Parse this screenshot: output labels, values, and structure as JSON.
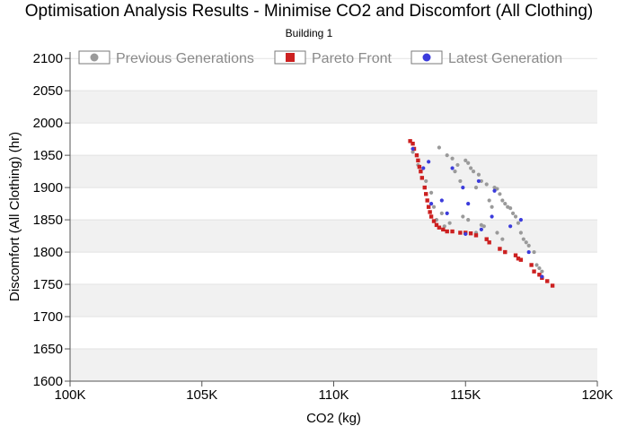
{
  "chart_data": {
    "type": "scatter",
    "title": "Optimisation Analysis Results - Minimise CO2 and Discomfort (All Clothing)",
    "subtitle": "Building 1",
    "xlabel": "CO2 (kg)",
    "ylabel": "Discomfort (All Clothing) (hr)",
    "xlim": [
      100000,
      120000
    ],
    "ylim": [
      1600,
      2110
    ],
    "x_ticks": [
      100000,
      105000,
      110000,
      115000,
      120000
    ],
    "x_tick_labels": [
      "100K",
      "105K",
      "110K",
      "115K",
      "120K"
    ],
    "y_ticks": [
      1600,
      1650,
      1700,
      1750,
      1800,
      1850,
      1900,
      1950,
      2000,
      2050,
      2100
    ],
    "y_tick_labels": [
      "1600",
      "1650",
      "1700",
      "1750",
      "1800",
      "1850",
      "1900",
      "1950",
      "2000",
      "2050",
      "2100"
    ],
    "legend_position": "top",
    "series": [
      {
        "name": "Previous Generations",
        "color": "#9a9a9a",
        "marker": "circle",
        "points": [
          [
            113000,
            1955
          ],
          [
            113200,
            1935
          ],
          [
            113500,
            1910
          ],
          [
            113700,
            1892
          ],
          [
            113800,
            1870
          ],
          [
            113900,
            1850
          ],
          [
            114000,
            1962
          ],
          [
            114100,
            1860
          ],
          [
            114200,
            1840
          ],
          [
            114300,
            1950
          ],
          [
            114500,
            1945
          ],
          [
            114600,
            1925
          ],
          [
            114700,
            1935
          ],
          [
            114800,
            1910
          ],
          [
            114900,
            1855
          ],
          [
            115000,
            1942
          ],
          [
            115100,
            1938
          ],
          [
            115200,
            1930
          ],
          [
            115300,
            1925
          ],
          [
            115400,
            1900
          ],
          [
            115500,
            1920
          ],
          [
            115600,
            1910
          ],
          [
            115700,
            1840
          ],
          [
            115800,
            1905
          ],
          [
            115900,
            1880
          ],
          [
            116000,
            1870
          ],
          [
            116100,
            1900
          ],
          [
            116200,
            1898
          ],
          [
            116300,
            1890
          ],
          [
            116400,
            1880
          ],
          [
            116500,
            1875
          ],
          [
            116600,
            1870
          ],
          [
            116700,
            1868
          ],
          [
            116800,
            1860
          ],
          [
            116900,
            1855
          ],
          [
            117000,
            1845
          ],
          [
            117100,
            1830
          ],
          [
            117200,
            1820
          ],
          [
            117300,
            1815
          ],
          [
            117400,
            1810
          ],
          [
            117600,
            1800
          ],
          [
            117700,
            1780
          ],
          [
            117800,
            1775
          ],
          [
            117900,
            1770
          ],
          [
            115400,
            1830
          ],
          [
            115600,
            1842
          ],
          [
            115100,
            1850
          ],
          [
            114400,
            1845
          ],
          [
            116200,
            1830
          ],
          [
            116400,
            1820
          ]
        ]
      },
      {
        "name": "Pareto Front",
        "color": "#cc2020",
        "marker": "square",
        "points": [
          [
            112900,
            1972
          ],
          [
            113000,
            1968
          ],
          [
            113050,
            1960
          ],
          [
            113150,
            1950
          ],
          [
            113200,
            1942
          ],
          [
            113250,
            1932
          ],
          [
            113300,
            1925
          ],
          [
            113350,
            1915
          ],
          [
            113450,
            1900
          ],
          [
            113500,
            1890
          ],
          [
            113550,
            1880
          ],
          [
            113600,
            1870
          ],
          [
            113650,
            1862
          ],
          [
            113700,
            1855
          ],
          [
            113800,
            1848
          ],
          [
            113900,
            1842
          ],
          [
            114000,
            1838
          ],
          [
            114150,
            1835
          ],
          [
            114300,
            1832
          ],
          [
            114500,
            1832
          ],
          [
            114800,
            1830
          ],
          [
            115000,
            1830
          ],
          [
            115200,
            1829
          ],
          [
            115400,
            1826
          ],
          [
            115800,
            1820
          ],
          [
            115900,
            1815
          ],
          [
            116300,
            1805
          ],
          [
            116500,
            1800
          ],
          [
            116900,
            1795
          ],
          [
            117000,
            1790
          ],
          [
            117100,
            1788
          ],
          [
            117500,
            1780
          ],
          [
            117600,
            1770
          ],
          [
            117800,
            1765
          ],
          [
            117900,
            1760
          ],
          [
            118100,
            1755
          ],
          [
            118300,
            1748
          ]
        ]
      },
      {
        "name": "Latest Generation",
        "color": "#3b3bdc",
        "marker": "circle",
        "points": [
          [
            113000,
            1960
          ],
          [
            113400,
            1930
          ],
          [
            113600,
            1940
          ],
          [
            113700,
            1875
          ],
          [
            114100,
            1880
          ],
          [
            114300,
            1860
          ],
          [
            114500,
            1930
          ],
          [
            114900,
            1900
          ],
          [
            115100,
            1875
          ],
          [
            115000,
            1828
          ],
          [
            115500,
            1910
          ],
          [
            115600,
            1835
          ],
          [
            116000,
            1855
          ],
          [
            116100,
            1895
          ],
          [
            116700,
            1840
          ],
          [
            117100,
            1850
          ],
          [
            117400,
            1800
          ],
          [
            117900,
            1762
          ]
        ]
      }
    ]
  }
}
